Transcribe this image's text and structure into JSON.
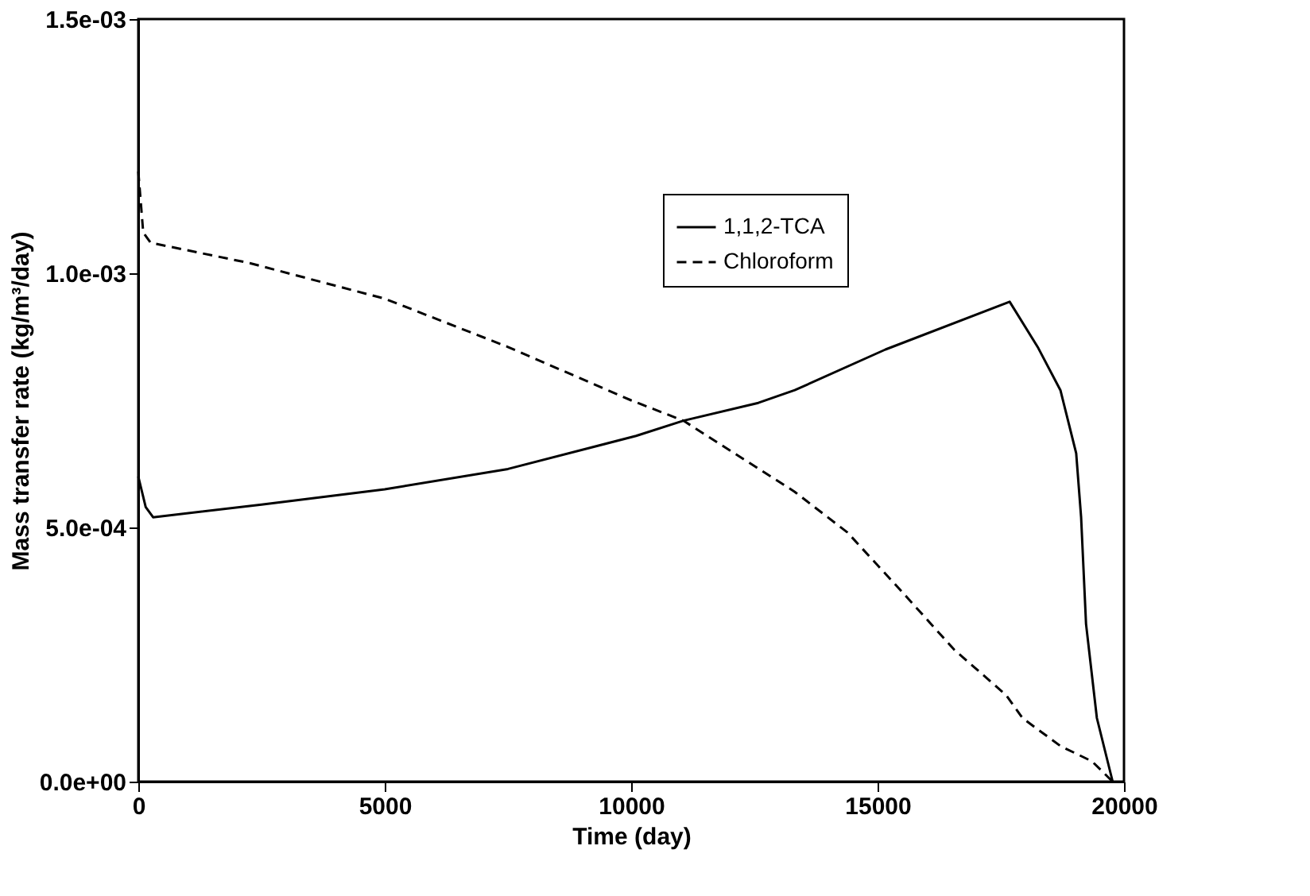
{
  "chart_data": {
    "type": "line",
    "xlabel": "Time (day)",
    "ylabel": "Mass transfer rate (kg/m³/day)",
    "xlim": [
      0,
      20000
    ],
    "xticks": [
      0,
      5000,
      10000,
      15000,
      20000
    ],
    "ylim": [
      0,
      0.0015
    ],
    "yticks": [
      {
        "value": 0,
        "label": "0.0e+00"
      },
      {
        "value": 0.0005,
        "label": "5.0e-04"
      },
      {
        "value": 0.001,
        "label": "1.0e-03"
      },
      {
        "value": 0.0015,
        "label": "1.5e-03"
      }
    ],
    "grid": false,
    "legend": "top right",
    "marker": "none",
    "series": [
      {
        "name": "1,1,2-TCA",
        "color": "#000000",
        "line_style": "solid",
        "x": [
          0,
          150,
          300,
          2500,
          5000,
          7500,
          10100,
          11060,
          12580,
          13320,
          15160,
          17680,
          18260,
          18710,
          19030,
          19130,
          19230,
          19450,
          19770
        ],
        "values": [
          0.0006,
          0.00054,
          0.00052,
          0.000545,
          0.000575,
          0.000615,
          0.00068,
          0.00071,
          0.000745,
          0.00077,
          0.00085,
          0.000944,
          0.000853,
          0.00077,
          0.000646,
          0.00052,
          0.00031,
          0.000125,
          0
        ]
      },
      {
        "name": "Chloroform",
        "color": "#000000",
        "line_style": "dashed",
        "x": [
          0,
          100,
          250,
          2260,
          5000,
          7500,
          10000,
          11060,
          13320,
          14390,
          15480,
          16550,
          17610,
          17940,
          18710,
          19350,
          19770
        ],
        "values": [
          0.0012,
          0.00108,
          0.00106,
          0.00102,
          0.00095,
          0.000855,
          0.00075,
          0.00071,
          0.00057,
          0.00049,
          0.000375,
          0.00026,
          0.00017,
          0.000125,
          7e-05,
          4e-05,
          0
        ]
      }
    ]
  }
}
